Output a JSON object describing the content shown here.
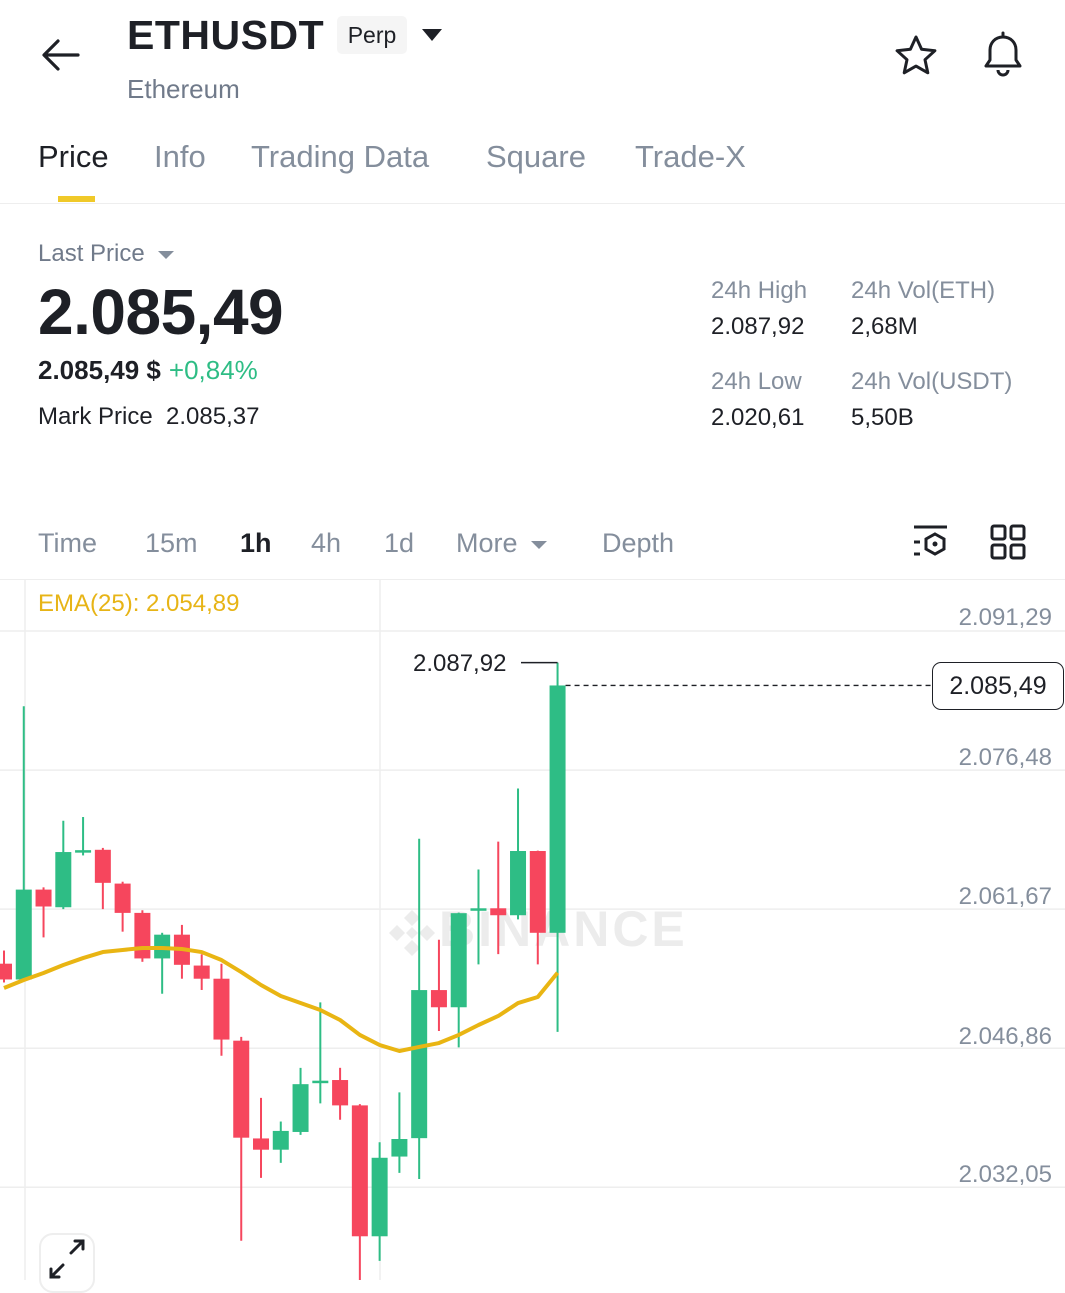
{
  "header": {
    "title": "ETHUSDT",
    "badge": "Perp",
    "subtitle": "Ethereum",
    "icons": [
      "back-arrow-icon",
      "caret-down-icon",
      "star-icon",
      "bell-icon"
    ]
  },
  "tabs": [
    {
      "label": "Price",
      "active": true
    },
    {
      "label": "Info"
    },
    {
      "label": "Trading Data"
    },
    {
      "label": "Square"
    },
    {
      "label": "Trade-X"
    }
  ],
  "ticker": {
    "last_price_label": "Last Price",
    "last_price": "2.085,49",
    "usd_price": "2.085,49 $",
    "change": "+0,84%",
    "mark_label": "Mark Price",
    "mark_price": "2.085,37",
    "stats": [
      {
        "label": "24h High",
        "value": "2.087,92"
      },
      {
        "label": "24h Vol(ETH)",
        "value": "2,68M"
      },
      {
        "label": "24h Low",
        "value": "2.020,61"
      },
      {
        "label": "24h Vol(USDT)",
        "value": "5,50B"
      }
    ]
  },
  "timeframes": [
    {
      "label": "Time"
    },
    {
      "label": "15m"
    },
    {
      "label": "1h",
      "active": true
    },
    {
      "label": "4h"
    },
    {
      "label": "1d"
    },
    {
      "label": "More"
    },
    {
      "label": "Depth"
    }
  ],
  "colors": {
    "up": "#2ebd85",
    "down": "#f6465d",
    "ema": "#e9b513",
    "accent": "#f0c929"
  },
  "chart_data": {
    "type": "candlestick",
    "interval": "1h",
    "ema_label": "EMA(25): 2.054,89",
    "y_ticks": [
      "2.091,29",
      "2.076,48",
      "2.061,67",
      "2.046,86",
      "2.032,05"
    ],
    "y_tick_values": [
      2091.29,
      2076.48,
      2061.67,
      2046.86,
      2032.05
    ],
    "last_price_label": "2.085,49",
    "last_price": 2085.49,
    "high_label": "2.087,92",
    "watermark": "BINANCE",
    "candles": [
      {
        "o": 2055.86,
        "h": 2057.26,
        "l": 2053.86,
        "c": 2054.18
      },
      {
        "o": 2054.18,
        "h": 2083.28,
        "l": 2054.1,
        "c": 2063.75
      },
      {
        "o": 2063.75,
        "h": 2063.99,
        "l": 2058.66,
        "c": 2061.95
      },
      {
        "o": 2061.87,
        "h": 2071.08,
        "l": 2061.67,
        "c": 2067.75
      },
      {
        "o": 2067.79,
        "h": 2071.48,
        "l": 2067.39,
        "c": 2067.95
      },
      {
        "o": 2067.99,
        "h": 2068.19,
        "l": 2061.67,
        "c": 2064.47
      },
      {
        "o": 2064.39,
        "h": 2064.59,
        "l": 2059.27,
        "c": 2061.27
      },
      {
        "o": 2061.27,
        "h": 2061.55,
        "l": 2056.06,
        "c": 2056.42
      },
      {
        "o": 2056.42,
        "h": 2059.15,
        "l": 2052.66,
        "c": 2058.95
      },
      {
        "o": 2058.95,
        "h": 2059.99,
        "l": 2054.26,
        "c": 2055.74
      },
      {
        "o": 2055.66,
        "h": 2056.86,
        "l": 2053.06,
        "c": 2054.26
      },
      {
        "o": 2054.26,
        "h": 2055.86,
        "l": 2046.06,
        "c": 2047.78
      },
      {
        "o": 2047.66,
        "h": 2048.06,
        "l": 2026.36,
        "c": 2037.33
      },
      {
        "o": 2037.25,
        "h": 2041.57,
        "l": 2033.05,
        "c": 2036.05
      },
      {
        "o": 2036.05,
        "h": 2039.05,
        "l": 2034.65,
        "c": 2038.05
      },
      {
        "o": 2037.94,
        "h": 2044.77,
        "l": 2037.63,
        "c": 2043.03
      },
      {
        "o": 2043.2,
        "h": 2051.74,
        "l": 2040.98,
        "c": 2043.4
      },
      {
        "o": 2043.47,
        "h": 2044.77,
        "l": 2039.24,
        "c": 2040.77
      },
      {
        "o": 2040.77,
        "h": 2040.9,
        "l": 2020.61,
        "c": 2026.83
      },
      {
        "o": 2026.83,
        "h": 2036.85,
        "l": 2024.21,
        "c": 2035.19
      },
      {
        "o": 2035.32,
        "h": 2042.16,
        "l": 2033.58,
        "c": 2037.19
      },
      {
        "o": 2037.28,
        "h": 2069.16,
        "l": 2032.93,
        "c": 2053.05
      },
      {
        "o": 2053.05,
        "h": 2058.41,
        "l": 2048.69,
        "c": 2051.22
      },
      {
        "o": 2051.22,
        "h": 2061.3,
        "l": 2046.95,
        "c": 2061.24
      },
      {
        "o": 2061.58,
        "h": 2065.89,
        "l": 2055.79,
        "c": 2061.76
      },
      {
        "o": 2061.76,
        "h": 2068.86,
        "l": 2056.88,
        "c": 2061.02
      },
      {
        "o": 2061.02,
        "h": 2074.52,
        "l": 2060.58,
        "c": 2067.86
      },
      {
        "o": 2067.86,
        "h": 2067.9,
        "l": 2055.79,
        "c": 2059.15
      },
      {
        "o": 2059.15,
        "h": 2087.92,
        "l": 2048.6,
        "c": 2085.49
      }
    ],
    "ema": [
      2053.27,
      2054.12,
      2054.87,
      2055.72,
      2056.46,
      2057.1,
      2057.32,
      2057.53,
      2057.53,
      2057.42,
      2057.1,
      2056.25,
      2054.97,
      2053.59,
      2052.42,
      2051.67,
      2050.93,
      2049.86,
      2048.27,
      2047.2,
      2046.56,
      2046.99,
      2047.41,
      2048.27,
      2049.33,
      2050.29,
      2051.67,
      2052.31,
      2054.89
    ]
  }
}
